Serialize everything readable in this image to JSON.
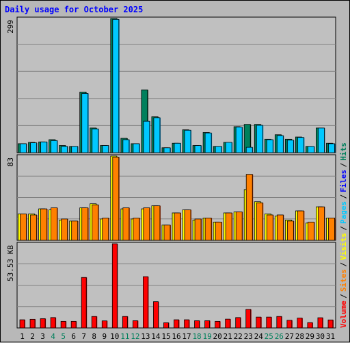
{
  "chart_data": [
    {
      "title": "Daily usage for October 2025",
      "type": "bar",
      "panel": "top",
      "ymax_label": "299",
      "ylim": [
        0,
        299
      ],
      "categories": [
        "1",
        "2",
        "3",
        "4",
        "5",
        "6",
        "7",
        "8",
        "9",
        "10",
        "11",
        "12",
        "13",
        "14",
        "15",
        "16",
        "17",
        "18",
        "19",
        "20",
        "21",
        "22",
        "23",
        "24",
        "25",
        "26",
        "27",
        "28",
        "29",
        "30",
        "31"
      ],
      "weekend_days": [
        "4",
        "5",
        "11",
        "12",
        "18",
        "19",
        "25",
        "26"
      ],
      "series": [
        {
          "name": "Hits",
          "color": "#00805c",
          "values": [
            20,
            23,
            24,
            29,
            16,
            14,
            135,
            55,
            16,
            299,
            32,
            20,
            140,
            80,
            11,
            21,
            51,
            16,
            45,
            14,
            23,
            58,
            63,
            63,
            30,
            40,
            30,
            35,
            14,
            55,
            21
          ]
        },
        {
          "name": "Pages",
          "color": "#00c8ff",
          "values": [
            20,
            22,
            24,
            27,
            14,
            14,
            132,
            53,
            16,
            297,
            29,
            20,
            70,
            78,
            11,
            21,
            50,
            16,
            44,
            14,
            23,
            57,
            12,
            61,
            29,
            38,
            28,
            34,
            14,
            55,
            20
          ]
        }
      ]
    },
    {
      "type": "bar",
      "panel": "middle",
      "ymax_label": "83",
      "ylim": [
        0,
        83
      ],
      "categories": [
        "1",
        "2",
        "3",
        "4",
        "5",
        "6",
        "7",
        "8",
        "9",
        "10",
        "11",
        "12",
        "13",
        "14",
        "15",
        "16",
        "17",
        "18",
        "19",
        "20",
        "21",
        "22",
        "23",
        "24",
        "25",
        "26",
        "27",
        "28",
        "29",
        "30",
        "31"
      ],
      "series": [
        {
          "name": "Visits",
          "color": "#ffff00",
          "values": [
            26,
            26,
            31,
            30,
            20,
            19,
            32,
            36,
            21,
            83,
            31,
            21,
            31,
            34,
            15,
            27,
            30,
            20,
            22,
            18,
            27,
            28,
            50,
            38,
            26,
            24,
            20,
            29,
            17,
            33,
            22
          ]
        },
        {
          "name": "Sites",
          "color": "#ff8000",
          "values": [
            26,
            25,
            31,
            32,
            21,
            19,
            32,
            35,
            22,
            82,
            32,
            22,
            32,
            34,
            15,
            27,
            30,
            21,
            22,
            18,
            27,
            28,
            65,
            37,
            25,
            25,
            19,
            29,
            18,
            33,
            22
          ]
        }
      ]
    },
    {
      "type": "bar",
      "panel": "bottom",
      "ymax_label": "53.53 KB",
      "ylim": [
        0,
        53.53
      ],
      "categories": [
        "1",
        "2",
        "3",
        "4",
        "5",
        "6",
        "7",
        "8",
        "9",
        "10",
        "11",
        "12",
        "13",
        "14",
        "15",
        "16",
        "17",
        "18",
        "19",
        "20",
        "21",
        "22",
        "23",
        "24",
        "25",
        "26",
        "27",
        "28",
        "29",
        "30",
        "31"
      ],
      "series": [
        {
          "name": "Volume",
          "color": "#ff0000",
          "values": [
            5.2,
            5.5,
            5.9,
            6.6,
            4.2,
            4.2,
            32.1,
            7.3,
            4.5,
            53.53,
            7.3,
            4.6,
            32.6,
            16.7,
            3.3,
            5.2,
            5.2,
            4.6,
            4.6,
            4.2,
            5.6,
            6.6,
            11.8,
            6.9,
            6.9,
            7.3,
            4.9,
            6.3,
            3.4,
            6.5,
            5.1
          ]
        }
      ]
    }
  ],
  "legend": [
    {
      "label": "Volume",
      "color": "#ff0000"
    },
    {
      "label": "/",
      "color": "#000000"
    },
    {
      "label": "Sites",
      "color": "#ff8000"
    },
    {
      "label": "/",
      "color": "#000000"
    },
    {
      "label": "Visits",
      "color": "#ffff00"
    },
    {
      "label": "/",
      "color": "#000000"
    },
    {
      "label": "Pages",
      "color": "#00c8ff"
    },
    {
      "label": "/",
      "color": "#000000"
    },
    {
      "label": "Files",
      "color": "#0000ff"
    },
    {
      "label": "/",
      "color": "#000000"
    },
    {
      "label": "Hits",
      "color": "#00805c"
    }
  ],
  "colors": {
    "background": "#b8b8b8",
    "plot": "#c0c0c0",
    "title": "#0000ff",
    "weekday_label": "#000000",
    "weekend_label": "#00805c"
  }
}
